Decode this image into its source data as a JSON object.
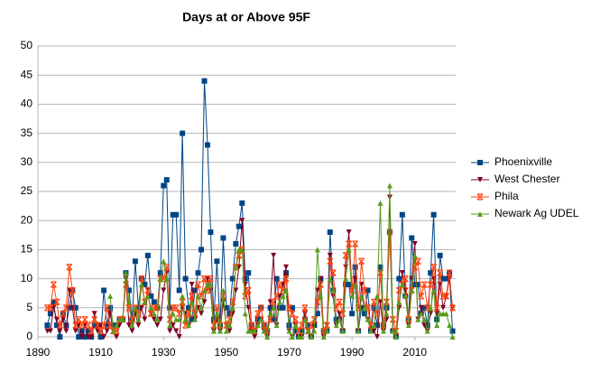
{
  "chart_data": {
    "type": "line",
    "title": "Days at or Above 95F",
    "x": [
      1893,
      1894,
      1895,
      1896,
      1897,
      1898,
      1899,
      1900,
      1901,
      1902,
      1903,
      1904,
      1905,
      1906,
      1907,
      1908,
      1909,
      1910,
      1911,
      1912,
      1913,
      1914,
      1915,
      1916,
      1917,
      1918,
      1919,
      1920,
      1921,
      1922,
      1923,
      1924,
      1925,
      1926,
      1927,
      1928,
      1929,
      1930,
      1931,
      1932,
      1933,
      1934,
      1935,
      1936,
      1937,
      1938,
      1939,
      1940,
      1941,
      1942,
      1943,
      1944,
      1945,
      1946,
      1947,
      1948,
      1949,
      1950,
      1951,
      1952,
      1953,
      1954,
      1955,
      1956,
      1957,
      1958,
      1959,
      1960,
      1961,
      1962,
      1963,
      1964,
      1965,
      1966,
      1967,
      1968,
      1969,
      1970,
      1971,
      1972,
      1973,
      1974,
      1975,
      1976,
      1977,
      1978,
      1979,
      1980,
      1981,
      1982,
      1983,
      1984,
      1985,
      1986,
      1987,
      1988,
      1989,
      1990,
      1991,
      1992,
      1993,
      1994,
      1995,
      1996,
      1997,
      1998,
      1999,
      2000,
      2001,
      2002,
      2003,
      2004,
      2005,
      2006,
      2007,
      2008,
      2009,
      2010,
      2011,
      2012,
      2013,
      2014,
      2015,
      2016,
      2017,
      2018,
      2019,
      2020,
      2021,
      2022
    ],
    "series": [
      {
        "name": "Phoenixville",
        "color": "#004586",
        "marker": "square",
        "values": [
          2,
          4,
          6,
          2,
          0,
          4,
          2,
          5,
          8,
          5,
          0,
          1,
          0,
          1,
          0,
          2,
          2,
          0,
          8,
          2,
          5,
          2,
          2,
          3,
          3,
          11,
          8,
          3,
          13,
          5,
          10,
          9,
          14,
          7,
          6,
          5,
          11,
          26,
          27,
          5,
          21,
          21,
          8,
          35,
          10,
          5,
          3,
          8,
          11,
          15,
          44,
          33,
          18,
          3,
          13,
          2,
          17,
          5,
          4,
          10,
          16,
          19,
          23,
          10,
          11,
          2,
          1,
          3,
          5,
          2,
          1,
          5,
          3,
          10,
          5,
          5,
          11,
          2,
          5,
          1,
          0,
          1,
          3,
          2,
          0,
          2,
          4,
          10,
          1,
          1,
          18,
          8,
          3,
          3,
          1,
          9,
          9,
          4,
          12,
          1,
          5,
          4,
          8,
          1,
          5,
          2,
          12,
          2,
          5,
          18,
          1,
          0,
          10,
          21,
          7,
          3,
          17,
          9,
          9,
          4,
          5,
          2,
          11,
          21,
          3,
          14,
          10,
          10,
          11,
          1
        ]
      },
      {
        "name": "West Chester",
        "color": "#7e0021",
        "marker": "tri-down",
        "values": [
          1,
          1,
          5,
          3,
          1,
          3,
          1,
          8,
          5,
          1,
          2,
          0,
          2,
          0,
          0,
          4,
          1,
          2,
          0,
          1,
          4,
          1,
          0,
          2,
          3,
          10,
          2,
          1,
          4,
          2,
          5,
          3,
          8,
          4,
          3,
          2,
          3,
          8,
          11,
          1,
          2,
          1,
          0,
          5,
          4,
          2,
          9,
          3,
          5,
          4,
          6,
          10,
          8,
          1,
          3,
          1,
          6,
          2,
          1,
          4,
          8,
          12,
          20,
          9,
          5,
          1,
          0,
          2,
          3,
          1,
          0,
          6,
          14,
          2,
          7,
          9,
          12,
          1,
          0,
          2,
          0,
          0,
          4,
          1,
          0,
          2,
          8,
          10,
          0,
          2,
          14,
          7,
          2,
          4,
          1,
          12,
          18,
          8,
          10,
          1,
          9,
          5,
          3,
          1,
          1,
          0,
          6,
          1,
          3,
          24,
          1,
          0,
          5,
          11,
          8,
          2,
          10,
          16,
          3,
          5,
          2,
          1,
          4,
          10,
          4,
          9,
          5,
          7,
          10,
          5
        ]
      },
      {
        "name": "Phila",
        "color": "#ff420e",
        "marker": "star",
        "values": [
          5,
          5,
          9,
          6,
          2,
          4,
          5,
          12,
          8,
          2,
          3,
          2,
          3,
          2,
          1,
          3,
          2,
          1,
          2,
          5,
          2,
          1,
          1,
          3,
          3,
          9,
          5,
          3,
          5,
          4,
          10,
          6,
          8,
          4,
          5,
          5,
          10,
          10,
          12,
          3,
          5,
          5,
          4,
          6,
          2,
          4,
          7,
          4,
          9,
          7,
          10,
          8,
          10,
          2,
          5,
          2,
          7,
          2,
          3,
          6,
          12,
          14,
          15,
          7,
          8,
          2,
          1,
          4,
          5,
          2,
          1,
          3,
          6,
          7,
          9,
          8,
          10,
          5,
          4,
          3,
          1,
          2,
          5,
          1,
          2,
          3,
          6,
          9,
          1,
          2,
          13,
          11,
          5,
          6,
          4,
          14,
          16,
          8,
          16,
          5,
          13,
          8,
          5,
          2,
          6,
          4,
          11,
          2,
          6,
          18,
          3,
          1,
          8,
          9,
          10,
          3,
          8,
          12,
          13,
          7,
          9,
          5,
          9,
          12,
          5,
          11,
          7,
          7,
          11,
          5
        ]
      },
      {
        "name": "Newark Ag UDEL",
        "color": "#579d1c",
        "marker": "tri-up",
        "values": [
          null,
          null,
          null,
          null,
          null,
          null,
          null,
          null,
          null,
          null,
          null,
          null,
          null,
          null,
          null,
          null,
          null,
          null,
          null,
          null,
          7,
          1,
          2,
          3,
          3,
          11,
          6,
          2,
          5,
          3,
          9,
          6,
          7,
          5,
          4,
          3,
          10,
          13,
          10,
          2,
          4,
          3,
          3,
          7,
          3,
          2,
          6,
          3,
          7,
          5,
          8,
          9,
          9,
          1,
          4,
          1,
          8,
          1,
          2,
          5,
          12,
          15,
          15,
          4,
          1,
          1,
          1,
          2,
          3,
          1,
          0,
          4,
          5,
          2,
          6,
          7,
          8,
          1,
          0,
          2,
          0,
          0,
          3,
          1,
          0,
          1,
          15,
          7,
          0,
          1,
          10,
          8,
          2,
          3,
          1,
          10,
          15,
          7,
          9,
          1,
          7,
          5,
          3,
          1,
          2,
          7,
          23,
          1,
          4,
          26,
          1,
          0,
          6,
          9,
          7,
          2,
          8,
          14,
          3,
          4,
          3,
          1,
          5,
          8,
          2,
          4,
          4,
          4,
          2,
          0
        ]
      }
    ],
    "xlim": [
      1890,
      2023
    ],
    "xticks": [
      1890,
      1910,
      1930,
      1950,
      1970,
      1990,
      2010
    ],
    "ylim": [
      0,
      50
    ],
    "yticks": [
      0,
      5,
      10,
      15,
      20,
      25,
      30,
      35,
      40,
      45,
      50
    ],
    "grid": true,
    "legend": "right"
  }
}
